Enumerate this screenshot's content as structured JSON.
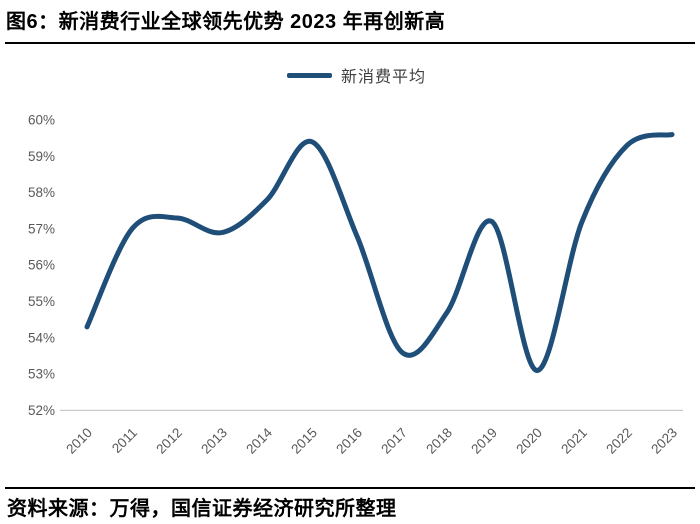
{
  "header": {
    "title": "图6：新消费行业全球领先优势 2023 年再创新高"
  },
  "legend": {
    "label": "新消费平均"
  },
  "footer": {
    "source": "资料来源：万得，国信证券经济研究所整理"
  },
  "colors": {
    "line": "#1F4E79",
    "axis_text": "#595959",
    "axis_line": "#C9C9C9",
    "divider": "#000000",
    "legend_text": "#3F3F3F",
    "background": "#FFFFFF"
  },
  "chart_data": {
    "type": "line",
    "title": "图6：新消费行业全球领先优势 2023 年再创新高",
    "source_note": "资料来源：万得，国信证券经济研究所整理",
    "x": [
      "2010",
      "2011",
      "2012",
      "2013",
      "2014",
      "2015",
      "2016",
      "2017",
      "2018",
      "2019",
      "2020",
      "2021",
      "2022",
      "2023"
    ],
    "series": [
      {
        "name": "新消费平均",
        "color": "#1F4E79",
        "values": [
          54.3,
          57.0,
          57.3,
          56.9,
          57.8,
          59.4,
          56.8,
          53.6,
          54.7,
          57.2,
          53.1,
          57.2,
          59.3,
          59.6
        ]
      }
    ],
    "ylim": [
      52,
      60
    ],
    "ytick_values": [
      52,
      53,
      54,
      55,
      56,
      57,
      58,
      59,
      60
    ],
    "ytick_suffix": "%",
    "xlabel": "",
    "ylabel": "",
    "grid": false,
    "smooth": true,
    "legend_position": "top-center",
    "x_label_rotation_deg": -45
  }
}
